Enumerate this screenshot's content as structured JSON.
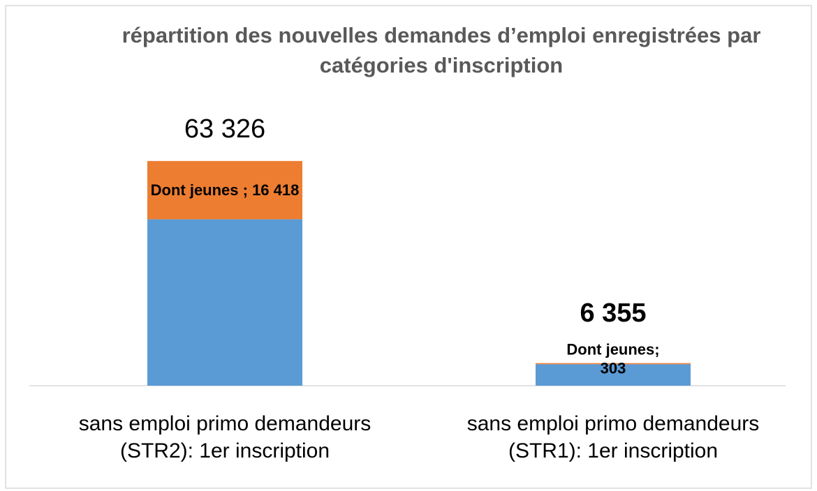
{
  "chart_data": {
    "type": "stacked_bar",
    "title": "répartition des nouvelles demandes d’emploi enregistrées par catégories d'inscription",
    "categories": [
      "sans emploi primo demandeurs (STR2): 1er inscription",
      "sans emploi primo demandeurs (STR1): 1er inscription"
    ],
    "series": [
      {
        "color": "#5b9bd5",
        "values": [
          46908,
          6052
        ]
      },
      {
        "color": "#ed7d31",
        "values": [
          16418,
          303
        ],
        "value_labels": [
          "Dont jeunes ; 16 418",
          "Dont jeunes; 303"
        ]
      }
    ],
    "totals": [
      63326,
      6355
    ],
    "total_labels": [
      "63 326",
      "6 355"
    ],
    "total_label_bold": [
      false,
      true
    ],
    "ylim": [
      0,
      80000
    ]
  }
}
